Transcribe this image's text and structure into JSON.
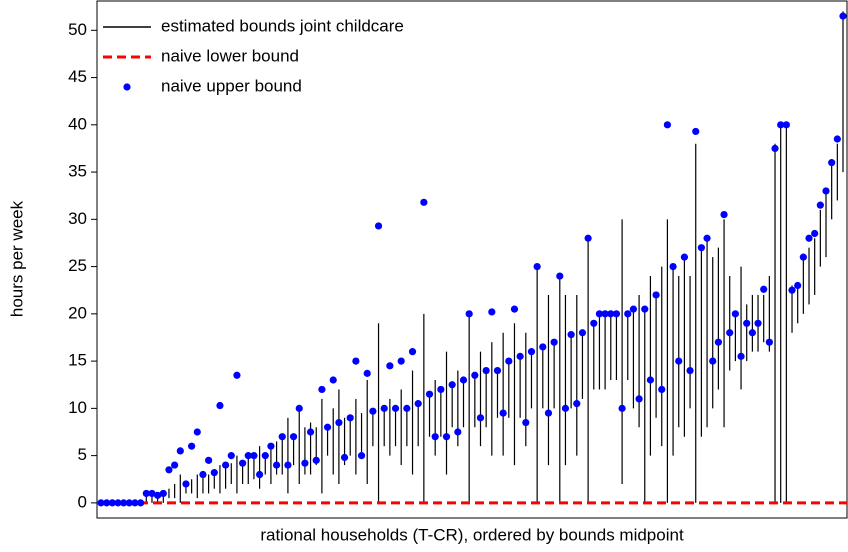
{
  "chart_data": {
    "type": "range",
    "x_label": "rational households (T-CR), ordered by bounds midpoint",
    "y_label": "hours per week",
    "ylim": [
      -1.6,
      53.1
    ],
    "yticks": [
      0,
      5,
      10,
      15,
      20,
      25,
      30,
      35,
      40,
      45,
      50
    ],
    "legend": "upper left",
    "series": [
      {
        "name": "estimated bounds joint childcare",
        "color": "#000000",
        "lower": [
          0,
          0,
          0,
          0,
          0,
          0,
          0,
          0,
          0,
          0,
          0,
          0,
          0.5,
          0.5,
          0,
          1,
          1,
          0.5,
          1,
          1,
          1.5,
          1,
          1.5,
          2,
          1,
          2,
          2,
          2.5,
          1.5,
          3,
          2,
          3,
          3,
          1,
          4,
          2,
          3,
          3,
          4,
          1,
          5,
          3,
          2,
          4,
          5,
          3,
          5,
          2,
          6,
          0,
          6,
          5,
          6,
          4,
          6,
          3,
          6,
          0,
          7,
          5,
          7,
          3,
          8,
          6,
          8,
          0,
          8,
          6,
          8,
          5,
          9,
          5,
          9,
          4,
          9,
          6,
          10,
          0,
          10,
          4,
          10,
          0,
          4,
          10,
          5,
          11,
          0,
          12,
          12,
          12,
          13,
          13,
          2,
          13,
          10,
          8,
          0,
          5,
          9,
          6,
          0,
          5,
          8,
          7,
          10,
          0,
          7,
          8,
          10,
          12,
          8,
          14,
          15,
          12,
          15,
          16,
          16,
          17,
          16,
          0,
          0,
          0,
          18,
          19,
          20,
          21,
          22,
          25,
          26,
          30,
          32,
          35
        ],
        "upper": [
          0,
          0,
          0,
          0,
          0,
          0,
          0,
          0,
          1,
          1,
          1,
          1.2,
          1.5,
          2,
          3,
          2,
          2.5,
          3,
          3,
          3,
          3.5,
          4,
          4,
          4.2,
          5,
          4.5,
          5,
          5,
          6,
          5,
          6,
          6.5,
          7,
          9,
          7,
          10,
          8,
          8.5,
          8,
          11,
          8,
          10,
          12,
          9,
          9,
          11,
          9.5,
          13,
          9.7,
          19,
          10,
          11,
          10,
          12,
          10,
          14,
          10.5,
          20,
          11.5,
          13,
          12,
          16,
          12.5,
          14,
          13,
          20,
          13.5,
          16,
          14,
          17,
          14,
          18,
          15,
          19,
          15.5,
          18,
          16,
          25,
          16.5,
          22,
          17,
          24,
          22,
          17.5,
          22,
          18,
          28,
          19,
          20,
          20,
          20,
          20,
          30,
          20,
          20.5,
          22,
          20.5,
          24,
          22,
          25,
          30,
          25,
          24,
          26,
          24,
          38,
          27,
          28,
          26,
          27,
          30,
          24,
          20,
          25,
          21,
          22,
          22,
          22,
          24,
          38,
          40,
          40,
          23,
          23,
          26,
          27,
          28,
          31,
          33,
          36,
          38,
          52
        ]
      },
      {
        "name": "naive lower bound",
        "color": "#ff0000",
        "value": 0
      },
      {
        "name": "naive upper bound",
        "color": "#0000ff",
        "values": [
          0,
          0,
          0,
          0,
          0,
          0,
          0,
          0,
          1,
          1,
          0.8,
          1,
          3.5,
          4,
          5.5,
          2,
          6,
          7.5,
          3,
          4.5,
          3.2,
          10.3,
          4,
          5,
          13.5,
          4.2,
          5,
          5,
          3,
          5,
          6,
          4,
          7,
          4,
          7,
          10,
          4.2,
          7.5,
          4.5,
          12,
          8,
          13,
          8.5,
          4.8,
          9,
          15,
          5,
          13.7,
          9.7,
          29.3,
          10,
          14.5,
          10,
          15,
          10,
          16,
          10.5,
          31.8,
          11.5,
          7,
          12,
          7,
          12.5,
          7.5,
          13,
          20,
          13.5,
          9,
          14,
          20.2,
          14,
          9.5,
          15,
          20.5,
          15.5,
          8.5,
          16,
          25,
          16.5,
          9.5,
          17,
          24,
          10,
          17.8,
          10.5,
          18,
          28,
          19,
          20,
          20,
          20,
          20,
          10,
          20,
          20.5,
          11,
          20.5,
          13,
          22,
          12,
          40,
          25,
          15,
          26,
          14,
          39.3,
          27,
          28,
          15,
          17,
          30.5,
          18,
          20,
          15.5,
          19,
          18,
          19,
          22.6,
          17,
          37.5,
          40,
          40,
          22.5,
          23,
          26,
          28,
          28.5,
          31.5,
          33,
          36,
          38.5,
          51.5
        ]
      }
    ]
  }
}
